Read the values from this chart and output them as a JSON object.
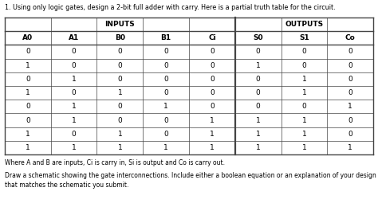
{
  "title": "1. Using only logic gates, design a 2-bit full adder with carry. Here is a partial truth table for the circuit.",
  "footer_line1": "Where A and B are inputs, Ci is carry in, Si is output and Co is carry out.",
  "footer_line2": "Draw a schematic showing the gate interconnections. Include either a boolean equation or an explanation of your design",
  "footer_line3": "that matches the schematic you submit.",
  "input_headers": [
    "A0",
    "A1",
    "B0",
    "B1",
    "Ci"
  ],
  "output_headers": [
    "S0",
    "S1",
    "Co"
  ],
  "group_label_inputs": "INPUTS",
  "group_label_outputs": "OUTPUTS",
  "rows": [
    [
      0,
      0,
      0,
      0,
      0,
      0,
      0,
      0
    ],
    [
      1,
      0,
      0,
      0,
      0,
      1,
      0,
      0
    ],
    [
      0,
      1,
      0,
      0,
      0,
      0,
      1,
      0
    ],
    [
      1,
      0,
      1,
      0,
      0,
      0,
      1,
      0
    ],
    [
      0,
      1,
      0,
      1,
      0,
      0,
      0,
      1
    ],
    [
      0,
      1,
      0,
      0,
      1,
      1,
      1,
      0
    ],
    [
      1,
      0,
      1,
      0,
      1,
      1,
      1,
      0
    ],
    [
      1,
      1,
      1,
      1,
      1,
      1,
      1,
      1
    ]
  ],
  "bg_color": "#ffffff",
  "text_color": "#000000",
  "table_line_color": "#444444",
  "font_size_title": 5.8,
  "font_size_table": 6.5,
  "font_size_footer": 5.5,
  "fig_width": 4.74,
  "fig_height": 2.65,
  "dpi": 100
}
